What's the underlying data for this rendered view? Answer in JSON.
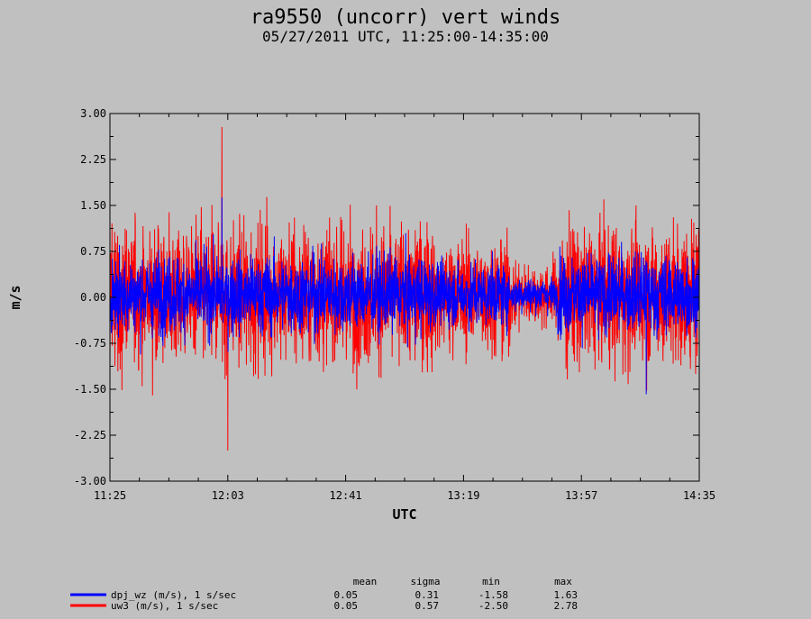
{
  "chart_data": {
    "type": "line",
    "title": "ra9550 (uncorr) vert winds",
    "subtitle": "05/27/2011  UTC, 11:25:00-14:35:00",
    "xlabel": "UTC",
    "ylabel": "m/s",
    "x_ticks": [
      "11:25",
      "12:03",
      "12:41",
      "13:19",
      "13:57",
      "14:35"
    ],
    "y_ticks": [
      "3.00",
      "2.25",
      "1.50",
      "0.75",
      "0.00",
      "-0.75",
      "-1.50",
      "-2.25",
      "-3.00"
    ],
    "ylim": [
      -3.0,
      3.0
    ],
    "xlim": [
      "11:25:00",
      "14:35:00"
    ],
    "grid": false,
    "legend_position": "bottom-left",
    "stats_headers": [
      "mean",
      "sigma",
      "min",
      "max"
    ],
    "series": [
      {
        "name": "uw3 (m/s), 1 s/sec",
        "color": "#ff0000",
        "stats": {
          "mean": "0.05",
          "sigma": "0.57",
          "min": "-2.50",
          "max": "2.78"
        }
      },
      {
        "name": "dpj_wz (m/s), 1 s/sec",
        "color": "#0000ff",
        "stats": {
          "mean": "0.05",
          "sigma": "0.31",
          "min": "-1.58",
          "max": "1.63"
        }
      }
    ],
    "legend_order": [
      1,
      0
    ]
  }
}
